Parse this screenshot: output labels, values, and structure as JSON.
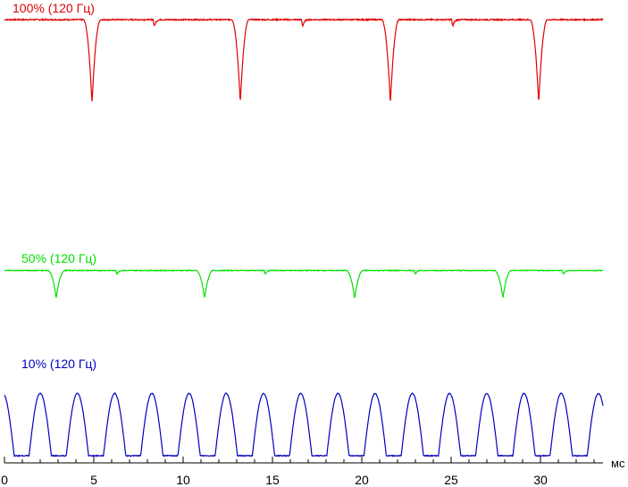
{
  "chart_data": {
    "type": "line",
    "title": "",
    "xlabel": "мс",
    "ylabel": "",
    "xlim": [
      0,
      33.5
    ],
    "grid": false,
    "legend": "inline labels above each trace",
    "x_ticks": [
      0,
      5,
      10,
      15,
      20,
      25,
      30
    ],
    "x_tick_labels": [
      "0",
      "5",
      "10",
      "15",
      "20",
      "25",
      "30"
    ],
    "x_minor_tick_step": 1,
    "series": [
      {
        "name": "100% (120 Гц)",
        "color": "#e00000",
        "shape": "dips",
        "level": 0.95,
        "dips": [
          {
            "x": 4.9,
            "depth": 0.78,
            "width": 0.5
          },
          {
            "x": 13.2,
            "depth": 0.78,
            "width": 0.5
          },
          {
            "x": 21.6,
            "depth": 0.78,
            "width": 0.5
          },
          {
            "x": 29.9,
            "depth": 0.78,
            "width": 0.5
          }
        ],
        "glitches": [
          8.4,
          16.7,
          25.1
        ]
      },
      {
        "name": "50% (120 Гц)",
        "color": "#00e000",
        "shape": "dips",
        "level": 0.95,
        "dips": [
          {
            "x": 2.9,
            "depth": 0.42,
            "width": 0.5
          },
          {
            "x": 11.2,
            "depth": 0.42,
            "width": 0.5
          },
          {
            "x": 19.6,
            "depth": 0.42,
            "width": 0.5
          },
          {
            "x": 27.9,
            "depth": 0.42,
            "width": 0.5
          }
        ],
        "glitches": [
          6.3,
          14.6,
          23.0,
          31.3
        ]
      },
      {
        "name": "10% (120 Гц)",
        "color": "#0000c0",
        "shape": "pulses",
        "period": 2.083,
        "first_peak": 2.0,
        "peak": 0.75,
        "pulse_width": 1.25
      }
    ]
  }
}
